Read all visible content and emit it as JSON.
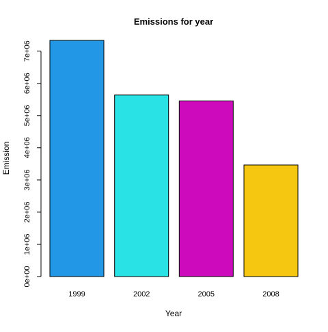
{
  "chart_data": {
    "type": "bar",
    "title": "Emissions for year",
    "xlabel": "Year",
    "ylabel": "Emission",
    "categories": [
      "1999",
      "2002",
      "2005",
      "2008"
    ],
    "values": [
      7332967,
      5635780,
      5454703,
      3464206
    ],
    "colors": [
      "#2297E6",
      "#28E2E5",
      "#CD0BBC",
      "#F5C710"
    ],
    "bar_border_color": "#000000",
    "ylim": [
      0,
      7332967
    ],
    "yticks": [
      0,
      1000000,
      2000000,
      3000000,
      4000000,
      5000000,
      6000000,
      7000000
    ],
    "ytick_labels": [
      "0e+00",
      "1e+06",
      "2e+06",
      "3e+06",
      "4e+06",
      "5e+06",
      "6e+06",
      "7e+06"
    ],
    "grid": false,
    "legend": "none"
  }
}
